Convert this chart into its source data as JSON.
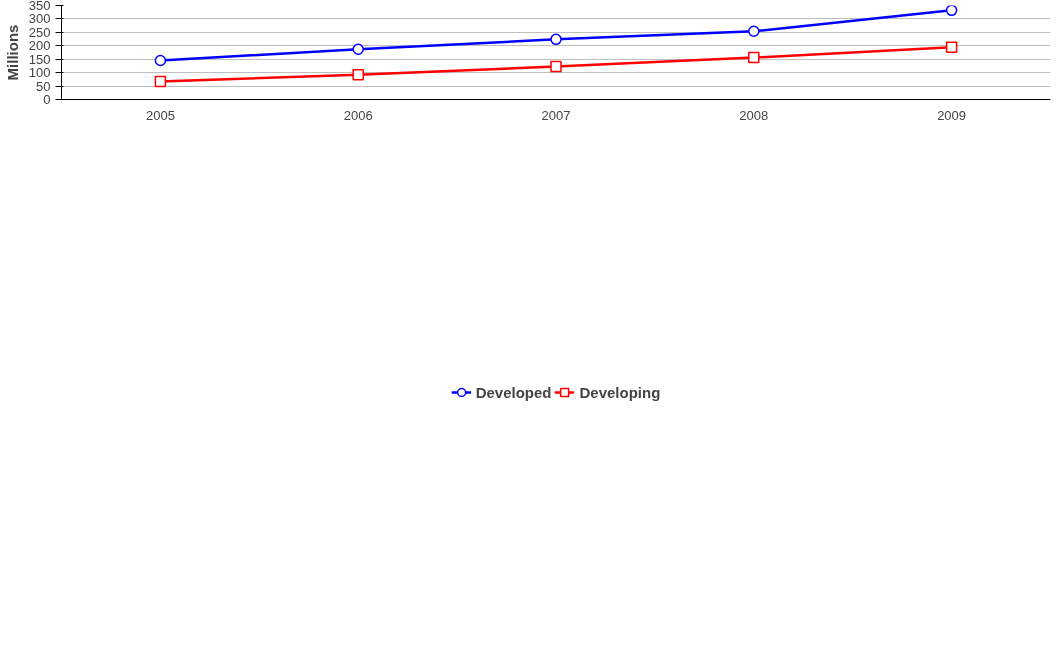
{
  "chart_data": {
    "type": "line",
    "ylabel": "Millions",
    "categories": [
      "2005",
      "2006",
      "2007",
      "2008",
      "2009"
    ],
    "series": [
      {
        "name": "Developed",
        "color": "#0000ff",
        "marker": "circle",
        "values": [
          145,
          187,
          224,
          254,
          332
        ]
      },
      {
        "name": "Developing",
        "color": "#ff0000",
        "marker": "square",
        "values": [
          67,
          92,
          123,
          156,
          195
        ]
      }
    ],
    "ylim": [
      0,
      350
    ],
    "yticks": [
      0,
      50,
      100,
      150,
      200,
      250,
      300,
      350
    ],
    "grid": "y",
    "legend": "bottom",
    "line_style": "solid"
  }
}
